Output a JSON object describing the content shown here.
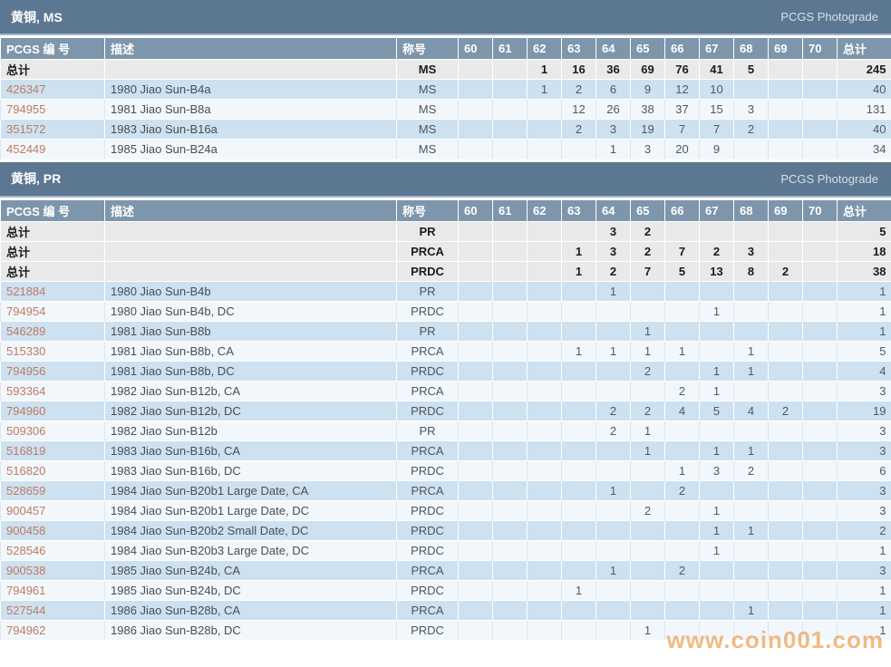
{
  "watermark": "www.coin001.com",
  "totals_label": "总计",
  "columns": {
    "id": "PCGS 编 号",
    "description": "描述",
    "designation": "称号",
    "grades": [
      "60",
      "61",
      "62",
      "63",
      "64",
      "65",
      "66",
      "67",
      "68",
      "69",
      "70"
    ],
    "total": "总计"
  },
  "colors": {
    "title_bar": "#5c7791",
    "header_row": "#7e96ab",
    "totals_row": "#e9e9e9",
    "row_blue": "#cde1f0",
    "row_light": "#f2f7fb",
    "link": "#bf7a62",
    "watermark": "#e99233"
  },
  "sections": [
    {
      "title": "黄铜, MS",
      "link": "PCGS Photograde",
      "totals": [
        {
          "designation": "MS",
          "grades": [
            "",
            "",
            "1",
            "16",
            "36",
            "69",
            "76",
            "41",
            "5",
            "",
            ""
          ],
          "total": "245"
        }
      ],
      "rows": [
        {
          "id": "426347",
          "description": "1980 Jiao Sun-B4a",
          "designation": "MS",
          "grades": [
            "",
            "",
            "1",
            "2",
            "6",
            "9",
            "12",
            "10",
            "",
            "",
            ""
          ],
          "total": "40"
        },
        {
          "id": "794955",
          "description": "1981 Jiao Sun-B8a",
          "designation": "MS",
          "grades": [
            "",
            "",
            "",
            "12",
            "26",
            "38",
            "37",
            "15",
            "3",
            "",
            ""
          ],
          "total": "131"
        },
        {
          "id": "351572",
          "description": "1983 Jiao Sun-B16a",
          "designation": "MS",
          "grades": [
            "",
            "",
            "",
            "2",
            "3",
            "19",
            "7",
            "7",
            "2",
            "",
            ""
          ],
          "total": "40"
        },
        {
          "id": "452449",
          "description": "1985 Jiao Sun-B24a",
          "designation": "MS",
          "grades": [
            "",
            "",
            "",
            "",
            "1",
            "3",
            "20",
            "9",
            "",
            "",
            ""
          ],
          "total": "34"
        }
      ]
    },
    {
      "title": "黄铜, PR",
      "link": "PCGS Photograde",
      "totals": [
        {
          "designation": "PR",
          "grades": [
            "",
            "",
            "",
            "",
            "3",
            "2",
            "",
            "",
            "",
            "",
            ""
          ],
          "total": "5"
        },
        {
          "designation": "PRCA",
          "grades": [
            "",
            "",
            "",
            "1",
            "3",
            "2",
            "7",
            "2",
            "3",
            "",
            ""
          ],
          "total": "18"
        },
        {
          "designation": "PRDC",
          "grades": [
            "",
            "",
            "",
            "1",
            "2",
            "7",
            "5",
            "13",
            "8",
            "2",
            ""
          ],
          "total": "38"
        }
      ],
      "rows": [
        {
          "id": "521884",
          "description": "1980 Jiao Sun-B4b",
          "designation": "PR",
          "grades": [
            "",
            "",
            "",
            "",
            "1",
            "",
            "",
            "",
            "",
            "",
            ""
          ],
          "total": "1"
        },
        {
          "id": "794954",
          "description": "1980 Jiao Sun-B4b, DC",
          "designation": "PRDC",
          "grades": [
            "",
            "",
            "",
            "",
            "",
            "",
            "",
            "1",
            "",
            "",
            ""
          ],
          "total": "1"
        },
        {
          "id": "546289",
          "description": "1981 Jiao Sun-B8b",
          "designation": "PR",
          "grades": [
            "",
            "",
            "",
            "",
            "",
            "1",
            "",
            "",
            "",
            "",
            ""
          ],
          "total": "1"
        },
        {
          "id": "515330",
          "description": "1981 Jiao Sun-B8b, CA",
          "designation": "PRCA",
          "grades": [
            "",
            "",
            "",
            "1",
            "1",
            "1",
            "1",
            "",
            "1",
            "",
            ""
          ],
          "total": "5"
        },
        {
          "id": "794956",
          "description": "1981 Jiao Sun-B8b, DC",
          "designation": "PRDC",
          "grades": [
            "",
            "",
            "",
            "",
            "",
            "2",
            "",
            "1",
            "1",
            "",
            ""
          ],
          "total": "4"
        },
        {
          "id": "593364",
          "description": "1982 Jiao Sun-B12b, CA",
          "designation": "PRCA",
          "grades": [
            "",
            "",
            "",
            "",
            "",
            "",
            "2",
            "1",
            "",
            "",
            ""
          ],
          "total": "3"
        },
        {
          "id": "794960",
          "description": "1982 Jiao Sun-B12b, DC",
          "designation": "PRDC",
          "grades": [
            "",
            "",
            "",
            "",
            "2",
            "2",
            "4",
            "5",
            "4",
            "2",
            ""
          ],
          "total": "19"
        },
        {
          "id": "509306",
          "description": "1982 Jiao Sun-B12b",
          "designation": "PR",
          "grades": [
            "",
            "",
            "",
            "",
            "2",
            "1",
            "",
            "",
            "",
            "",
            ""
          ],
          "total": "3"
        },
        {
          "id": "516819",
          "description": "1983 Jiao Sun-B16b, CA",
          "designation": "PRCA",
          "grades": [
            "",
            "",
            "",
            "",
            "",
            "1",
            "",
            "1",
            "1",
            "",
            ""
          ],
          "total": "3"
        },
        {
          "id": "516820",
          "description": "1983 Jiao Sun-B16b, DC",
          "designation": "PRDC",
          "grades": [
            "",
            "",
            "",
            "",
            "",
            "",
            "1",
            "3",
            "2",
            "",
            ""
          ],
          "total": "6"
        },
        {
          "id": "528659",
          "description": "1984 Jiao Sun-B20b1 Large Date, CA",
          "designation": "PRCA",
          "grades": [
            "",
            "",
            "",
            "",
            "1",
            "",
            "2",
            "",
            "",
            "",
            ""
          ],
          "total": "3"
        },
        {
          "id": "900457",
          "description": "1984 Jiao Sun-B20b1 Large Date, DC",
          "designation": "PRDC",
          "grades": [
            "",
            "",
            "",
            "",
            "",
            "2",
            "",
            "1",
            "",
            "",
            ""
          ],
          "total": "3"
        },
        {
          "id": "900458",
          "description": "1984 Jiao Sun-B20b2 Small Date, DC",
          "designation": "PRDC",
          "grades": [
            "",
            "",
            "",
            "",
            "",
            "",
            "",
            "1",
            "1",
            "",
            ""
          ],
          "total": "2"
        },
        {
          "id": "528546",
          "description": "1984 Jiao Sun-B20b3 Large Date, DC",
          "designation": "PRDC",
          "grades": [
            "",
            "",
            "",
            "",
            "",
            "",
            "",
            "1",
            "",
            "",
            ""
          ],
          "total": "1"
        },
        {
          "id": "900538",
          "description": "1985 Jiao Sun-B24b, CA",
          "designation": "PRCA",
          "grades": [
            "",
            "",
            "",
            "",
            "1",
            "",
            "2",
            "",
            "",
            "",
            ""
          ],
          "total": "3"
        },
        {
          "id": "794961",
          "description": "1985 Jiao Sun-B24b, DC",
          "designation": "PRDC",
          "grades": [
            "",
            "",
            "",
            "1",
            "",
            "",
            "",
            "",
            "",
            "",
            ""
          ],
          "total": "1"
        },
        {
          "id": "527544",
          "description": "1986 Jiao Sun-B28b, CA",
          "designation": "PRCA",
          "grades": [
            "",
            "",
            "",
            "",
            "",
            "",
            "",
            "",
            "1",
            "",
            ""
          ],
          "total": "1"
        },
        {
          "id": "794962",
          "description": "1986 Jiao Sun-B28b, DC",
          "designation": "PRDC",
          "grades": [
            "",
            "",
            "",
            "",
            "",
            "1",
            "",
            "",
            "",
            "",
            ""
          ],
          "total": "1"
        }
      ]
    }
  ]
}
